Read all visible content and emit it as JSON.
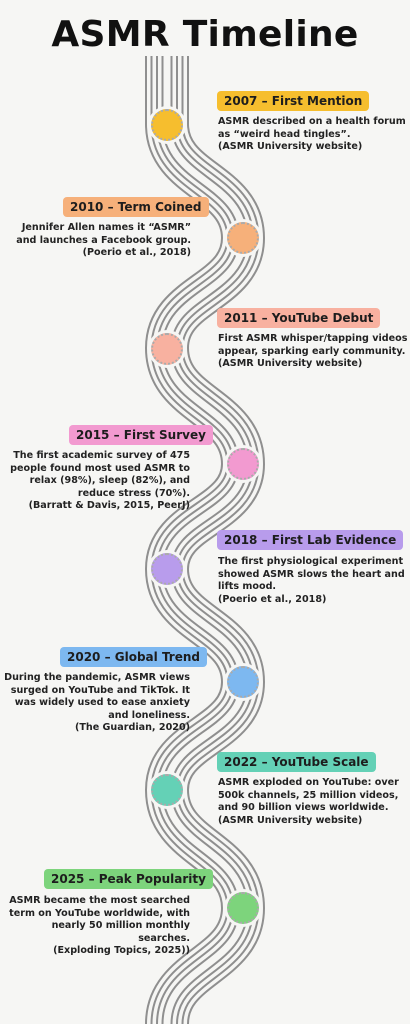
{
  "title": "ASMR Timeline",
  "events": [
    {
      "label": "2007 – First Mention",
      "color": "#f6be2e",
      "text": "ASMR described on a health forum as “weird head tingles”.",
      "source": "(ASMR University website)"
    },
    {
      "label": "2010 – Term Coined",
      "color": "#f6b07a",
      "text": "Jennifer Allen names it “ASMR” and launches a Facebook group.",
      "source": "(Poerio et al., 2018)"
    },
    {
      "label": "2011 – YouTube Debut",
      "color": "#f8b1a0",
      "text": "First ASMR whisper/tapping videos appear, sparking early community.",
      "source": "(ASMR University website)"
    },
    {
      "label": "2015 – First Survey",
      "color": "#f29ad0",
      "text": "The first academic survey of 475 people found most used ASMR to relax (98%), sleep (82%), and reduce stress (70%).",
      "source": "(Barratt & Davis, 2015, PeerJ)"
    },
    {
      "label": "2018 – First Lab Evidence",
      "color": "#b89cec",
      "text": "The first physiological experiment showed ASMR slows the heart and lifts mood.",
      "source": "(Poerio et al., 2018)"
    },
    {
      "label": "2020 – Global Trend",
      "color": "#7db8f0",
      "text": "During the pandemic, ASMR views surged on YouTube and TikTok. It was widely used to ease anxiety and loneliness.",
      "source": "(The Guardian, 2020)"
    },
    {
      "label": "2022 – YouTube Scale",
      "color": "#64d1b6",
      "text": "ASMR exploded on YouTube: over 500k channels, 25 million videos, and 90 billion views worldwide.",
      "source": "(ASMR University website)"
    },
    {
      "label": "2025 – Peak Popularity",
      "color": "#7dd47c",
      "text": "ASMR became the most searched term on YouTube worldwide, with nearly 50 million monthly searches.",
      "source": "(Exploding Topics, 2025))"
    }
  ]
}
